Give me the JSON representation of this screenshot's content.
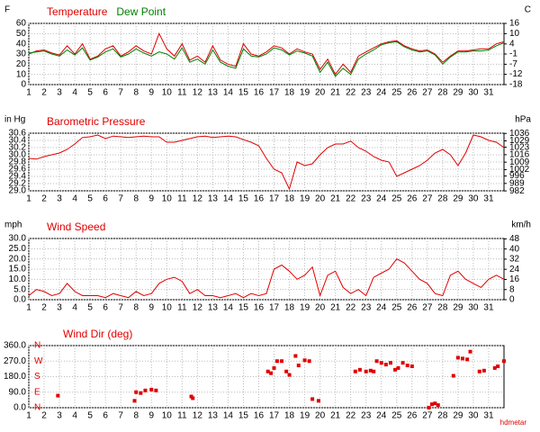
{
  "chart_data": {
    "credit": "hdmetar",
    "charts": [
      {
        "type": "line",
        "ylabel": "F",
        "y2label": "C",
        "x": [
          1,
          1.5,
          2,
          2.5,
          3,
          3.5,
          4,
          4.5,
          5,
          5.5,
          6,
          6.5,
          7,
          7.5,
          8,
          8.5,
          9,
          9.5,
          10,
          10.5,
          11,
          11.5,
          12,
          12.5,
          13,
          13.5,
          14,
          14.5,
          15,
          15.5,
          16,
          16.5,
          17,
          17.5,
          18,
          18.5,
          19,
          19.5,
          20,
          20.5,
          21,
          21.5,
          22,
          22.5,
          23,
          23.5,
          24,
          24.5,
          25,
          25.5,
          26,
          26.5,
          27,
          27.5,
          28,
          28.5,
          29,
          29.5,
          30,
          30.5,
          31,
          31.5,
          32
        ],
        "series": [
          {
            "name": "Temperature",
            "color": "#e00000",
            "values": [
              30,
              33,
              34,
              31,
              29,
              38,
              30,
              40,
              25,
              28,
              35,
              38,
              28,
              32,
              38,
              33,
              30,
              50,
              35,
              28,
              40,
              24,
              28,
              22,
              38,
              24,
              20,
              18,
              40,
              30,
              28,
              32,
              38,
              36,
              30,
              35,
              32,
              30,
              15,
              25,
              10,
              20,
              12,
              28,
              32,
              36,
              40,
              42,
              43,
              38,
              35,
              33,
              34,
              30,
              22,
              28,
              33,
              33,
              34,
              35,
              35,
              40,
              42
            ]
          },
          {
            "name": "Dew Point",
            "color": "#008000",
            "values": [
              31,
              32,
              33,
              30,
              28,
              34,
              29,
              36,
              24,
              27,
              32,
              35,
              27,
              30,
              35,
              31,
              28,
              32,
              30,
              25,
              36,
              22,
              25,
              20,
              34,
              22,
              18,
              16,
              35,
              28,
              27,
              30,
              36,
              34,
              29,
              33,
              31,
              28,
              12,
              22,
              8,
              16,
              10,
              25,
              30,
              34,
              39,
              41,
              42,
              37,
              34,
              32,
              33,
              29,
              20,
              27,
              32,
              32,
              33,
              33,
              34,
              38,
              41
            ]
          }
        ],
        "xlim": [
          1,
          32
        ],
        "xticks": [
          1,
          2,
          3,
          4,
          5,
          6,
          7,
          8,
          9,
          10,
          11,
          12,
          13,
          14,
          15,
          16,
          17,
          18,
          19,
          20,
          21,
          22,
          23,
          24,
          25,
          26,
          27,
          28,
          29,
          30,
          31
        ],
        "ylim": [
          0,
          60
        ],
        "yticks": [
          0,
          10,
          20,
          30,
          40,
          50,
          60
        ],
        "y2lim": [
          -17.8,
          15.6
        ],
        "y2ticks": [
          {
            "value": 15.6,
            "label": "16"
          },
          {
            "value": 10,
            "label": "10"
          },
          {
            "value": 4.4,
            "label": "4"
          },
          {
            "value": -1.1,
            "label": "-1"
          },
          {
            "value": -6.7,
            "label": "-7"
          },
          {
            "value": -12.2,
            "label": "-12"
          },
          {
            "value": -17.8,
            "label": "-18"
          }
        ],
        "grid": true
      },
      {
        "type": "line",
        "title": "Barometric Pressure",
        "ylabel": "in Hg",
        "y2label": "hPa",
        "x": [
          1,
          1.5,
          2,
          2.5,
          3,
          3.5,
          4,
          4.5,
          5,
          5.5,
          6,
          6.5,
          7,
          7.5,
          8,
          8.5,
          9,
          9.5,
          10,
          10.5,
          11,
          11.5,
          12,
          12.5,
          13,
          13.5,
          14,
          14.5,
          15,
          15.5,
          16,
          16.5,
          17,
          17.5,
          18,
          18.5,
          19,
          19.5,
          20,
          20.5,
          21,
          21.5,
          22,
          22.5,
          23,
          23.5,
          24,
          24.5,
          25,
          25.5,
          26,
          26.5,
          27,
          27.5,
          28,
          28.5,
          29,
          29.5,
          30,
          30.5,
          31,
          31.5,
          32
        ],
        "series": [
          {
            "name": "Pressure",
            "color": "#e00000",
            "values": [
              29.9,
              29.88,
              29.95,
              30.0,
              30.05,
              30.15,
              30.3,
              30.48,
              30.5,
              30.55,
              30.45,
              30.52,
              30.5,
              30.48,
              30.5,
              30.52,
              30.5,
              30.5,
              30.35,
              30.35,
              30.4,
              30.45,
              30.5,
              30.52,
              30.48,
              30.5,
              30.52,
              30.5,
              30.42,
              30.35,
              30.25,
              29.9,
              29.6,
              29.5,
              29.05,
              29.8,
              29.7,
              29.75,
              30.0,
              30.2,
              30.3,
              30.3,
              30.38,
              30.2,
              30.1,
              29.95,
              29.85,
              29.8,
              29.4,
              29.5,
              29.6,
              29.7,
              29.85,
              30.05,
              30.15,
              30.0,
              29.7,
              30.05,
              30.55,
              30.5,
              30.4,
              30.35,
              30.2
            ]
          }
        ],
        "xlim": [
          1,
          32
        ],
        "xticks": [
          1,
          2,
          3,
          4,
          5,
          6,
          7,
          8,
          9,
          10,
          11,
          12,
          13,
          14,
          15,
          16,
          17,
          18,
          19,
          20,
          21,
          22,
          23,
          24,
          25,
          26,
          27,
          28,
          29,
          30,
          31
        ],
        "ylim": [
          29,
          30.6
        ],
        "yticks": [
          {
            "value": 29,
            "label": "29.0"
          },
          29.2,
          29.4,
          29.6,
          29.8,
          {
            "value": 30,
            "label": "30.0"
          },
          30.2,
          30.4,
          30.6
        ],
        "y2lim": [
          982.1,
          1036.2
        ],
        "y2ticks": [
          982,
          989,
          996,
          1002,
          1009,
          1016,
          1023,
          1029,
          1036
        ],
        "grid": true
      },
      {
        "type": "line",
        "title": "Wind Speed",
        "ylabel": "mph",
        "y2label": "km/h",
        "x": [
          1,
          1.5,
          2,
          2.5,
          3,
          3.5,
          4,
          4.5,
          5,
          5.5,
          6,
          6.5,
          7,
          7.5,
          8,
          8.5,
          9,
          9.5,
          10,
          10.5,
          11,
          11.5,
          12,
          12.5,
          13,
          13.5,
          14,
          14.5,
          15,
          15.5,
          16,
          16.5,
          17,
          17.5,
          18,
          18.5,
          19,
          19.5,
          20,
          20.5,
          21,
          21.5,
          22,
          22.5,
          23,
          23.5,
          24,
          24.5,
          25,
          25.5,
          26,
          26.5,
          27,
          27.5,
          28,
          28.5,
          29,
          29.5,
          30,
          30.5,
          31,
          31.5,
          32
        ],
        "series": [
          {
            "name": "Wind Speed",
            "color": "#e00000",
            "values": [
              2,
              5,
              4,
              2,
              3,
              8,
              4,
              2,
              2,
              2,
              1,
              3,
              2,
              1,
              4,
              2,
              3,
              8,
              10,
              11,
              9,
              3,
              5,
              2,
              2,
              1,
              2,
              3,
              1,
              3,
              2,
              3,
              15,
              17,
              14,
              10,
              12,
              16,
              2,
              12,
              14,
              6,
              3,
              5,
              2,
              11,
              13,
              15,
              20,
              18,
              14,
              10,
              8,
              3,
              2,
              12,
              14,
              10,
              8,
              6,
              10,
              12,
              10
            ]
          }
        ],
        "xlim": [
          1,
          32
        ],
        "xticks": [
          1,
          2,
          3,
          4,
          5,
          6,
          7,
          8,
          9,
          10,
          11,
          12,
          13,
          14,
          15,
          16,
          17,
          18,
          19,
          20,
          21,
          22,
          23,
          24,
          25,
          26,
          27,
          28,
          29,
          30,
          31
        ],
        "ylim": [
          0,
          30
        ],
        "yticks": [
          {
            "value": 0,
            "label": "0.0"
          },
          {
            "value": 5,
            "label": "5.0"
          },
          {
            "value": 10,
            "label": "10.0"
          },
          {
            "value": 15,
            "label": "15.0"
          },
          {
            "value": 20,
            "label": "20.0"
          },
          {
            "value": 25,
            "label": "25.0"
          },
          {
            "value": 30,
            "label": "30.0"
          }
        ],
        "y2lim": [
          0,
          48.28
        ],
        "y2ticks": [
          0,
          8,
          16,
          24,
          32,
          40,
          48
        ],
        "grid": true
      },
      {
        "type": "scatter",
        "title": "Wind Dir (deg)",
        "color": "#e00000",
        "x": [
          2.9,
          7.9,
          8,
          8.3,
          8.6,
          9,
          9.3,
          11.6,
          11.7,
          16.6,
          16.8,
          17,
          17.2,
          17.5,
          17.8,
          18,
          18.4,
          18.6,
          19,
          19.3,
          19.5,
          19.9,
          22.3,
          22.6,
          23,
          23.3,
          23.5,
          23.7,
          24,
          24.3,
          24.6,
          24.9,
          25.1,
          25.4,
          25.7,
          26,
          27.1,
          27.3,
          27.5,
          27.7,
          28.7,
          29,
          29.3,
          29.6,
          29.8,
          30.4,
          30.7,
          31.4,
          31.6,
          32
        ],
        "values": [
          70,
          40,
          90,
          85,
          100,
          105,
          100,
          65,
          55,
          210,
          200,
          230,
          270,
          270,
          210,
          190,
          300,
          245,
          275,
          270,
          50,
          40,
          210,
          220,
          210,
          215,
          210,
          270,
          260,
          250,
          260,
          220,
          230,
          260,
          245,
          240,
          0,
          20,
          25,
          15,
          185,
          290,
          285,
          280,
          325,
          210,
          215,
          230,
          240,
          270
        ],
        "xlim": [
          1,
          32
        ],
        "xticks": [
          1,
          2,
          3,
          4,
          5,
          6,
          7,
          8,
          9,
          10,
          11,
          12,
          13,
          14,
          15,
          16,
          17,
          18,
          19,
          20,
          21,
          22,
          23,
          24,
          25,
          26,
          27,
          28,
          29,
          30,
          31
        ],
        "ylim": [
          0,
          360
        ],
        "yticks": [
          {
            "value": 0,
            "label": "0.0"
          },
          {
            "value": 90,
            "label": "90.0"
          },
          {
            "value": 180,
            "label": "180.0"
          },
          {
            "value": 270,
            "label": "270.0"
          },
          {
            "value": 360,
            "label": "360.0"
          }
        ],
        "compass": [
          {
            "value": 360,
            "label": "N"
          },
          {
            "value": 270,
            "label": "W"
          },
          {
            "value": 180,
            "label": "S"
          },
          {
            "value": 90,
            "label": "E"
          },
          {
            "value": 0,
            "label": "N"
          }
        ],
        "grid": true
      }
    ]
  }
}
